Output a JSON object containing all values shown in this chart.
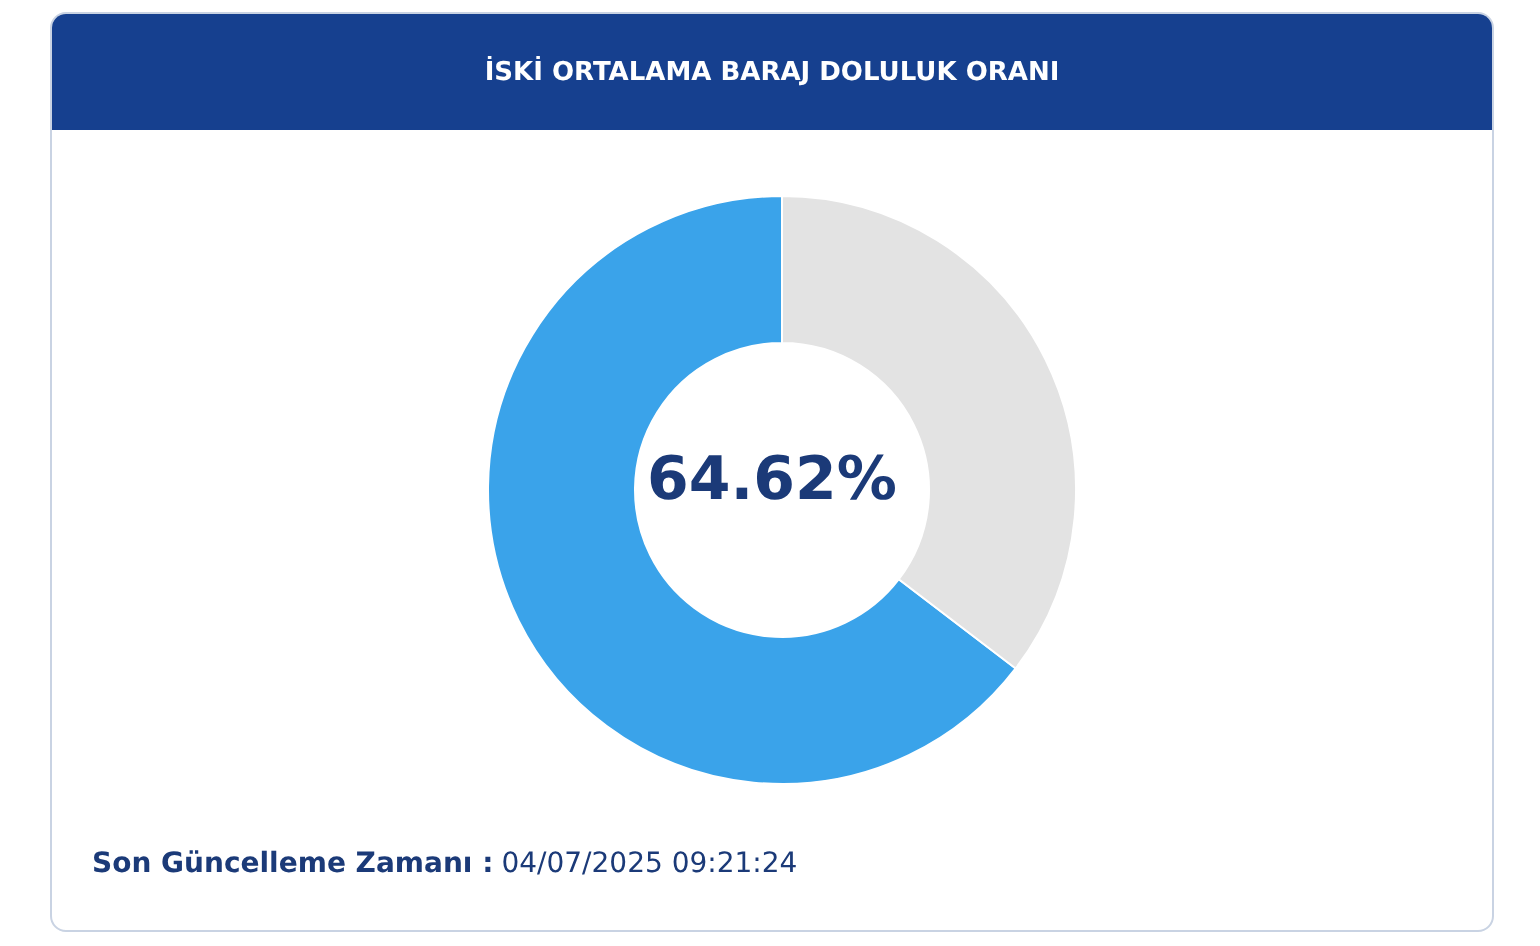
{
  "chart_data": {
    "type": "donut",
    "title": "İSKİ ORTALAMA BARAJ DOLULUK ORANI",
    "categories": [
      null,
      null
    ],
    "values": [
      64.62,
      35.38
    ],
    "colors": [
      "#3aa3ea",
      "#e3e3e3"
    ],
    "value_labels": [
      "64.62%",
      null
    ],
    "annotations": [
      "Son Güncelleme Zamanı :",
      "04/07/2025 09:21:24"
    ]
  }
}
